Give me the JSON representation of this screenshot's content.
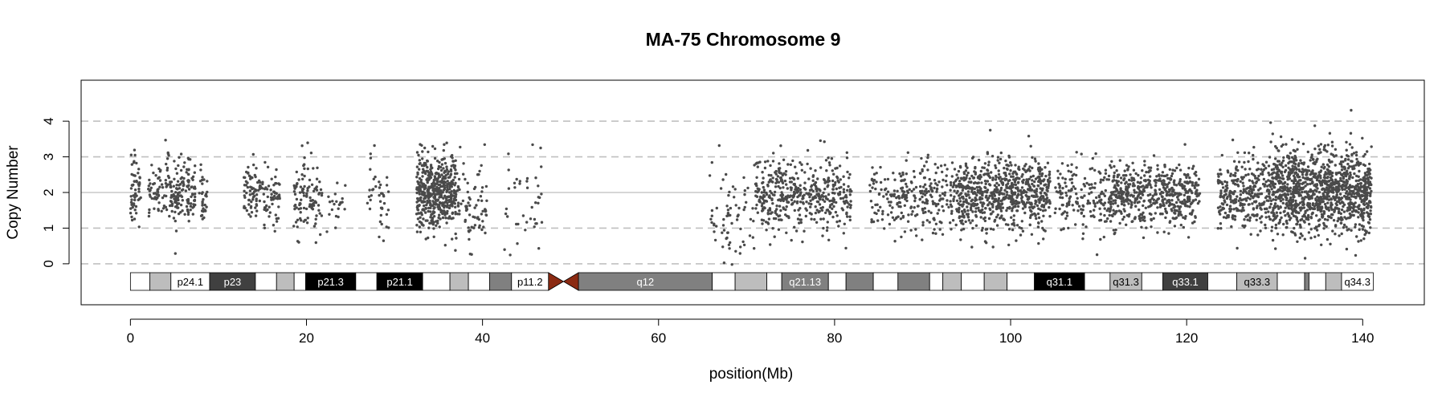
{
  "chart_data": {
    "type": "scatter",
    "title": "MA-75  Chromosome 9",
    "xlabel": "position(Mb)",
    "ylabel": "Copy Number",
    "xlim": [
      -5.6,
      147
    ],
    "ylim": [
      -1.15,
      5.15
    ],
    "x_ticks": [
      "0",
      "20",
      "40",
      "60",
      "80",
      "100",
      "120",
      "140"
    ],
    "y_ticks": [
      "0",
      "1",
      "2",
      "3",
      "4"
    ],
    "reference_lines": {
      "dashed": [
        0,
        1,
        3,
        4
      ],
      "solid": [
        2
      ]
    },
    "point_color": "#4a4a4a",
    "centromere_color": "#8b2a12",
    "centromere": [
      47.5,
      50.9
    ],
    "ideogram": [
      {
        "start": 0.0,
        "end": 2.2,
        "color": "#ffffff",
        "label": ""
      },
      {
        "start": 2.2,
        "end": 4.6,
        "color": "#bdbdbd",
        "label": ""
      },
      {
        "start": 4.6,
        "end": 9.0,
        "color": "#ffffff",
        "label": "p24.1"
      },
      {
        "start": 9.0,
        "end": 14.2,
        "color": "#404040",
        "label": "p23"
      },
      {
        "start": 14.2,
        "end": 16.6,
        "color": "#ffffff",
        "label": ""
      },
      {
        "start": 16.6,
        "end": 18.6,
        "color": "#bdbdbd",
        "label": ""
      },
      {
        "start": 18.6,
        "end": 19.9,
        "color": "#ffffff",
        "label": ""
      },
      {
        "start": 19.9,
        "end": 25.6,
        "color": "#000000",
        "label": "p21.3"
      },
      {
        "start": 25.6,
        "end": 28.0,
        "color": "#ffffff",
        "label": ""
      },
      {
        "start": 28.0,
        "end": 33.2,
        "color": "#000000",
        "label": "p21.1"
      },
      {
        "start": 33.2,
        "end": 36.3,
        "color": "#ffffff",
        "label": ""
      },
      {
        "start": 36.3,
        "end": 38.4,
        "color": "#bdbdbd",
        "label": ""
      },
      {
        "start": 38.4,
        "end": 40.8,
        "color": "#ffffff",
        "label": ""
      },
      {
        "start": 40.8,
        "end": 43.3,
        "color": "#808080",
        "label": ""
      },
      {
        "start": 43.3,
        "end": 47.5,
        "color": "#ffffff",
        "label": "p11.2"
      },
      {
        "start": 50.9,
        "end": 66.1,
        "color": "#808080",
        "label": "q12"
      },
      {
        "start": 66.1,
        "end": 68.7,
        "color": "#ffffff",
        "label": ""
      },
      {
        "start": 68.7,
        "end": 72.3,
        "color": "#bdbdbd",
        "label": ""
      },
      {
        "start": 72.3,
        "end": 74.0,
        "color": "#ffffff",
        "label": ""
      },
      {
        "start": 74.0,
        "end": 79.3,
        "color": "#808080",
        "label": "q21.13"
      },
      {
        "start": 79.3,
        "end": 81.3,
        "color": "#ffffff",
        "label": ""
      },
      {
        "start": 81.3,
        "end": 84.4,
        "color": "#808080",
        "label": ""
      },
      {
        "start": 84.4,
        "end": 87.2,
        "color": "#ffffff",
        "label": ""
      },
      {
        "start": 87.2,
        "end": 90.8,
        "color": "#808080",
        "label": ""
      },
      {
        "start": 90.8,
        "end": 92.3,
        "color": "#ffffff",
        "label": ""
      },
      {
        "start": 92.3,
        "end": 94.4,
        "color": "#bdbdbd",
        "label": ""
      },
      {
        "start": 94.4,
        "end": 97.0,
        "color": "#ffffff",
        "label": ""
      },
      {
        "start": 97.0,
        "end": 99.6,
        "color": "#bdbdbd",
        "label": ""
      },
      {
        "start": 99.6,
        "end": 102.7,
        "color": "#ffffff",
        "label": ""
      },
      {
        "start": 102.7,
        "end": 108.4,
        "color": "#000000",
        "label": "q31.1"
      },
      {
        "start": 108.4,
        "end": 111.3,
        "color": "#ffffff",
        "label": ""
      },
      {
        "start": 111.3,
        "end": 114.9,
        "color": "#bdbdbd",
        "label": "q31.3"
      },
      {
        "start": 114.9,
        "end": 117.3,
        "color": "#ffffff",
        "label": ""
      },
      {
        "start": 117.3,
        "end": 122.4,
        "color": "#404040",
        "label": "q33.1"
      },
      {
        "start": 122.4,
        "end": 125.7,
        "color": "#ffffff",
        "label": ""
      },
      {
        "start": 125.7,
        "end": 130.3,
        "color": "#bdbdbd",
        "label": "q33.3"
      },
      {
        "start": 130.3,
        "end": 133.4,
        "color": "#ffffff",
        "label": ""
      },
      {
        "start": 133.4,
        "end": 133.9,
        "color": "#808080",
        "label": ""
      },
      {
        "start": 133.9,
        "end": 135.8,
        "color": "#ffffff",
        "label": ""
      },
      {
        "start": 135.8,
        "end": 137.6,
        "color": "#bdbdbd",
        "label": ""
      },
      {
        "start": 137.6,
        "end": 141.2,
        "color": "#ffffff",
        "label": "q34.3"
      }
    ],
    "point_clusters": [
      {
        "start": 0.0,
        "end": 1.2,
        "mean": 2.1,
        "sd": 0.55,
        "count": 55
      },
      {
        "start": 2.0,
        "end": 4.2,
        "mean": 2.05,
        "sd": 0.4,
        "count": 60
      },
      {
        "start": 4.2,
        "end": 7.4,
        "mean": 2.05,
        "sd": 0.45,
        "count": 150
      },
      {
        "start": 7.8,
        "end": 8.8,
        "mean": 1.85,
        "sd": 0.4,
        "count": 30
      },
      {
        "start": 12.9,
        "end": 15.2,
        "mean": 2.0,
        "sd": 0.4,
        "count": 75
      },
      {
        "start": 15.2,
        "end": 17.0,
        "mean": 1.95,
        "sd": 0.45,
        "count": 55
      },
      {
        "start": 18.5,
        "end": 21.8,
        "mean": 1.85,
        "sd": 0.55,
        "count": 110
      },
      {
        "start": 22.0,
        "end": 24.6,
        "mean": 1.7,
        "sd": 0.45,
        "count": 22
      },
      {
        "start": 26.8,
        "end": 29.5,
        "mean": 1.95,
        "sd": 0.5,
        "count": 40
      },
      {
        "start": 32.5,
        "end": 37.0,
        "mean": 2.0,
        "sd": 0.55,
        "count": 500
      },
      {
        "start": 37.0,
        "end": 40.5,
        "mean": 1.6,
        "sd": 0.6,
        "count": 80
      },
      {
        "start": 42.5,
        "end": 46.8,
        "mean": 1.6,
        "sd": 0.75,
        "count": 40
      },
      {
        "start": 65.8,
        "end": 71.0,
        "mean": 1.3,
        "sd": 0.6,
        "count": 70
      },
      {
        "start": 71.0,
        "end": 76.5,
        "mean": 1.95,
        "sd": 0.5,
        "count": 250
      },
      {
        "start": 76.5,
        "end": 82.0,
        "mean": 1.95,
        "sd": 0.5,
        "count": 200
      },
      {
        "start": 84.0,
        "end": 94.0,
        "mean": 1.85,
        "sd": 0.5,
        "count": 280
      },
      {
        "start": 94.0,
        "end": 104.5,
        "mean": 1.95,
        "sd": 0.5,
        "count": 700
      },
      {
        "start": 105.0,
        "end": 111.0,
        "mean": 1.9,
        "sd": 0.5,
        "count": 160
      },
      {
        "start": 111.0,
        "end": 121.5,
        "mean": 1.95,
        "sd": 0.45,
        "count": 560
      },
      {
        "start": 123.5,
        "end": 129.5,
        "mean": 1.95,
        "sd": 0.5,
        "count": 300
      },
      {
        "start": 129.5,
        "end": 141.0,
        "mean": 2.05,
        "sd": 0.6,
        "count": 1200
      }
    ]
  }
}
